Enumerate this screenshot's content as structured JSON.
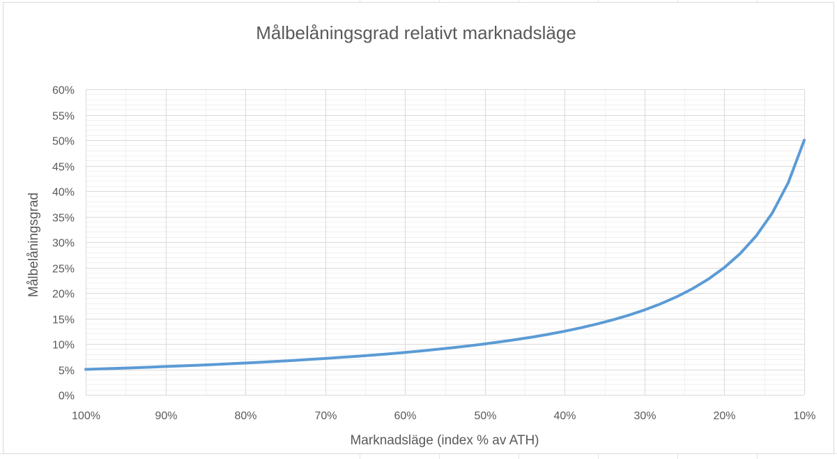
{
  "chart_data": {
    "type": "line",
    "title": "Målbelåningsgrad relativt marknadsläge",
    "xlabel": "Marknadsläge (index % av ATH)",
    "ylabel": "Målbelåningsgrad",
    "x_tick_labels": [
      "100%",
      "90%",
      "80%",
      "70%",
      "60%",
      "50%",
      "40%",
      "30%",
      "20%",
      "10%"
    ],
    "y_tick_labels": [
      "0%",
      "5%",
      "10%",
      "15%",
      "20%",
      "25%",
      "30%",
      "35%",
      "40%",
      "45%",
      "50%",
      "55%",
      "60%"
    ],
    "xlim": [
      100,
      10
    ],
    "ylim": [
      0,
      60
    ],
    "x_reversed": true,
    "grid": true,
    "legend": false,
    "series": [
      {
        "color": "#5b9bd5",
        "x": [
          100,
          98,
          96,
          94,
          92,
          90,
          88,
          86,
          84,
          82,
          80,
          78,
          76,
          74,
          72,
          70,
          68,
          66,
          64,
          62,
          60,
          58,
          56,
          54,
          52,
          50,
          48,
          46,
          44,
          42,
          40,
          38,
          36,
          34,
          32,
          30,
          28,
          26,
          24,
          22,
          20,
          18,
          16,
          14,
          12,
          10
        ],
        "values": [
          5.0,
          5.1,
          5.21,
          5.32,
          5.43,
          5.56,
          5.68,
          5.81,
          5.95,
          6.1,
          6.25,
          6.41,
          6.58,
          6.76,
          6.94,
          7.14,
          7.35,
          7.58,
          7.81,
          8.06,
          8.33,
          8.62,
          8.93,
          9.26,
          9.62,
          10.0,
          10.42,
          10.87,
          11.36,
          11.9,
          12.5,
          13.16,
          13.89,
          14.71,
          15.63,
          16.67,
          17.86,
          19.23,
          20.83,
          22.73,
          25.0,
          27.78,
          31.25,
          35.71,
          41.67,
          50.0
        ]
      }
    ]
  }
}
